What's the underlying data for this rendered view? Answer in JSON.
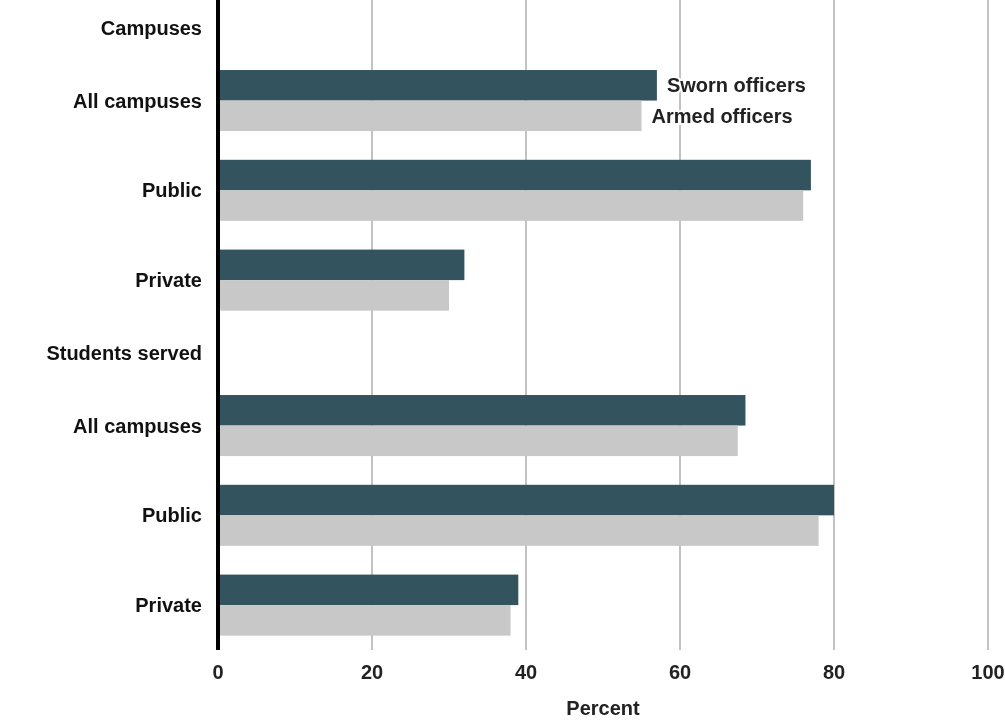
{
  "chart_data": {
    "type": "bar",
    "orientation": "horizontal",
    "xlabel": "Percent",
    "categories": [
      "Campuses",
      "All campuses",
      "Public",
      "Private",
      "Students served",
      "All campuses",
      "Public",
      "Private"
    ],
    "series": [
      {
        "name": "Sworn officers",
        "color": "#33545f",
        "values": [
          null,
          57,
          77,
          32,
          null,
          68.5,
          80,
          39
        ]
      },
      {
        "name": "Armed officers",
        "color": "#c8c8c8",
        "values": [
          null,
          55,
          76,
          30,
          null,
          67.5,
          78,
          38
        ]
      }
    ],
    "xlim": [
      0,
      100
    ],
    "xticks": [
      0,
      20,
      40,
      60,
      80,
      100
    ],
    "grid": "x",
    "legend": false
  }
}
